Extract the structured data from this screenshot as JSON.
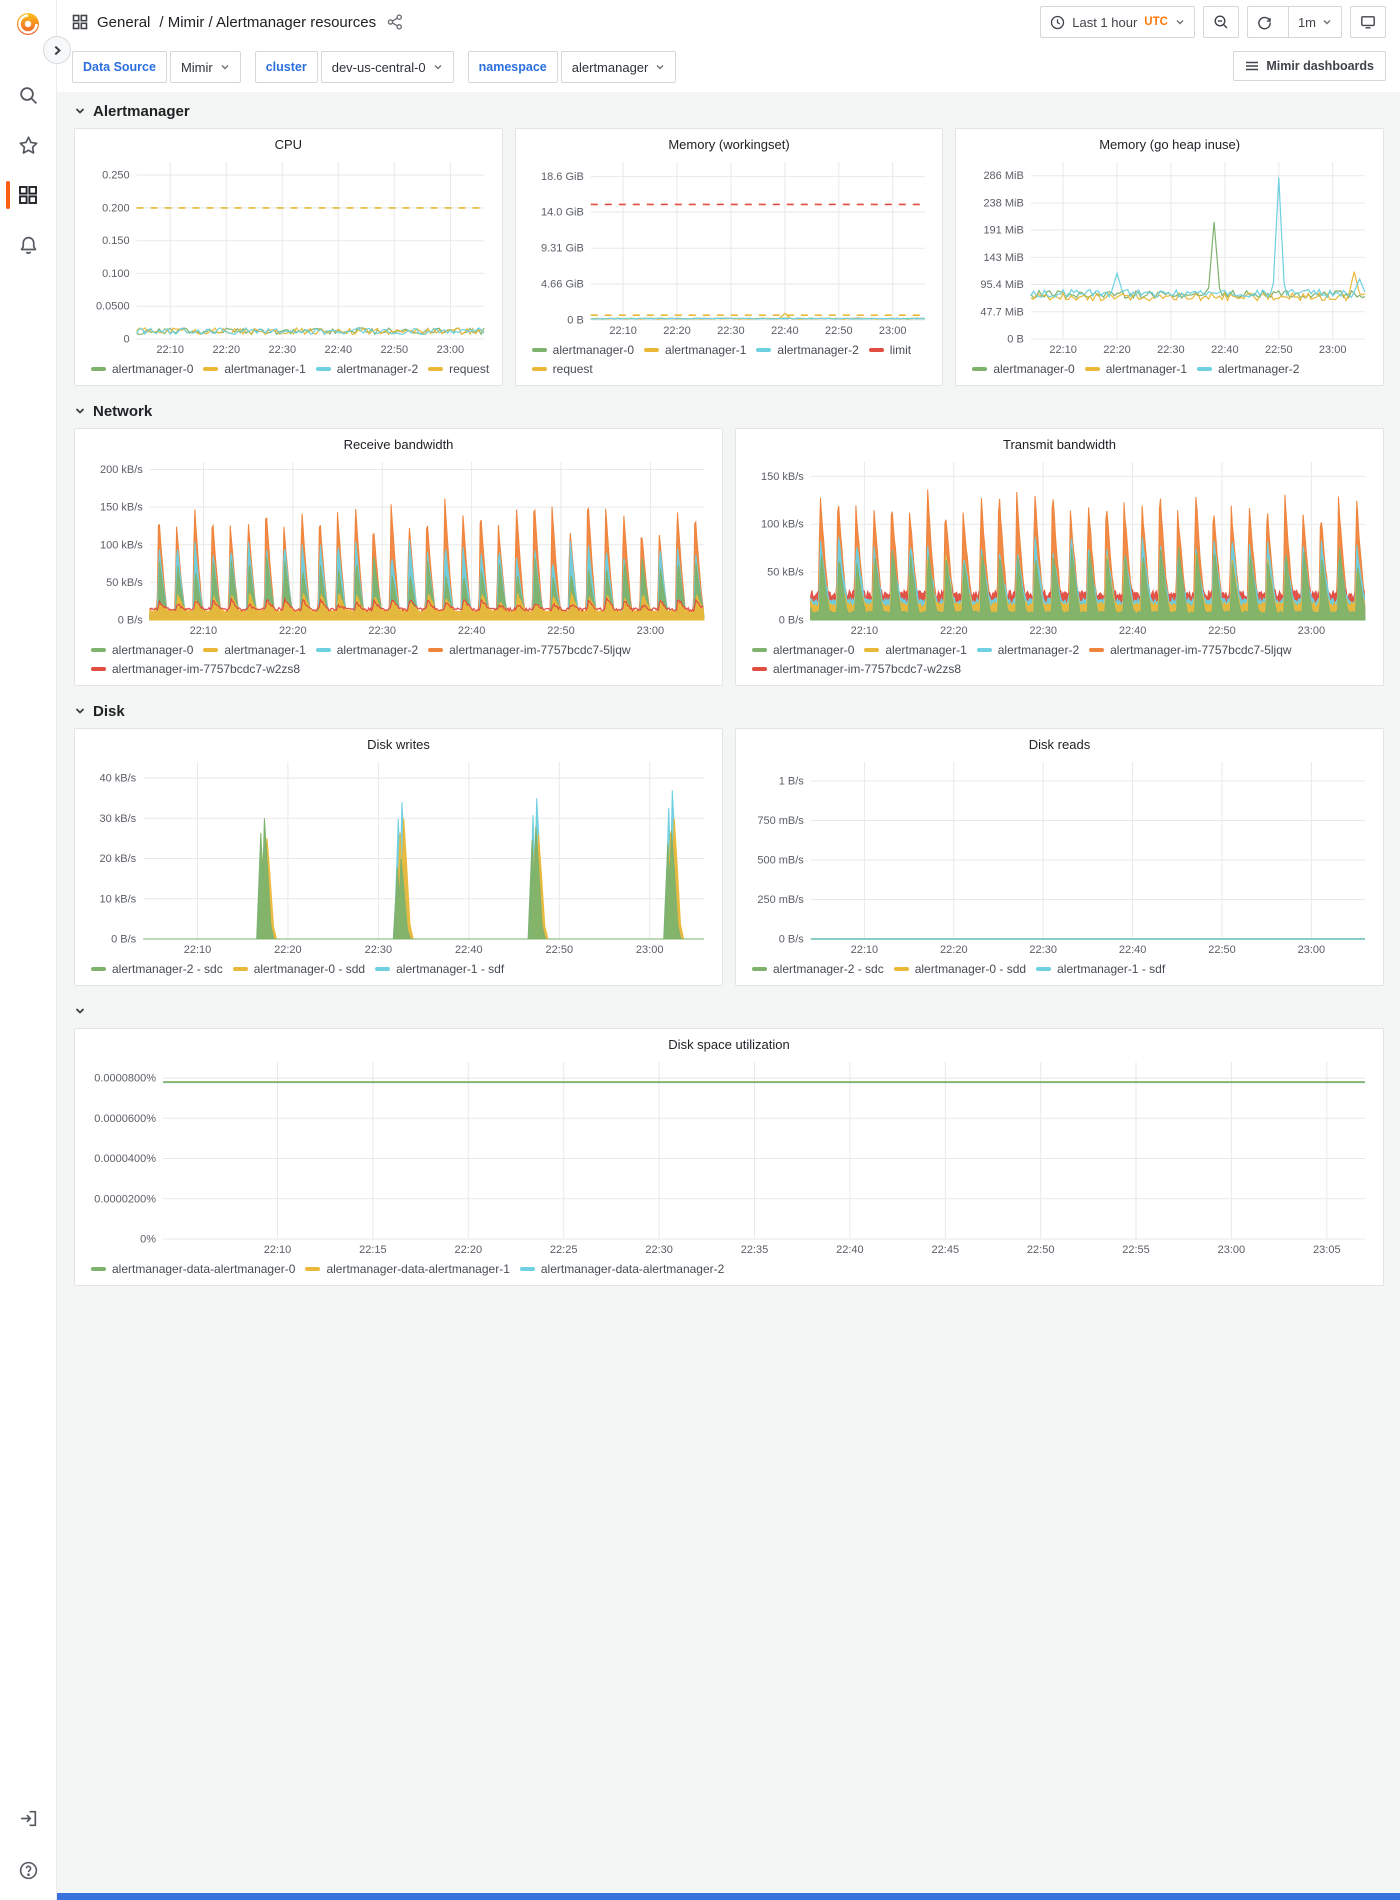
{
  "header": {
    "breadcrumb_section": "General",
    "breadcrumb_path": "/ Mimir / Alertmanager resources",
    "time_range": "Last 1 hour",
    "timezone": "UTC",
    "refresh_interval": "1m"
  },
  "submenu": {
    "variables": [
      {
        "label": "Data Source",
        "value": "Mimir"
      },
      {
        "label": "cluster",
        "value": "dev-us-central-0"
      },
      {
        "label": "namespace",
        "value": "alertmanager"
      }
    ],
    "dashboards_button": "Mimir dashboards"
  },
  "sidebar": {
    "icons": [
      "grafana-logo",
      "search",
      "star",
      "dashboards",
      "alerting"
    ],
    "bottom_icons": [
      "sign-in",
      "help"
    ]
  },
  "colors": {
    "green": "#7EB26D",
    "yellow": "#EAB839",
    "cyan": "#6ED0E0",
    "orange": "#EF843C",
    "red": "#E24D42",
    "accent_orange": "#FF780A",
    "link_blue": "#2B6FDF",
    "bottom_bar_blue": "#3871DC"
  },
  "sections": [
    {
      "title": "Alertmanager",
      "panels": [
        "cpu",
        "mem_ws",
        "mem_heap"
      ]
    },
    {
      "title": "Network",
      "panels": [
        "rx",
        "tx"
      ]
    },
    {
      "title": "Disk",
      "panels": [
        "dw",
        "dr"
      ]
    },
    {
      "title": "",
      "panels": [
        "dsu"
      ]
    }
  ],
  "chart_data": [
    {
      "id": "cpu",
      "type": "line",
      "title": "CPU",
      "x_max": 62,
      "x_ticks": [
        [
          6,
          "22:10"
        ],
        [
          16,
          "22:20"
        ],
        [
          26,
          "22:30"
        ],
        [
          36,
          "22:40"
        ],
        [
          46,
          "22:50"
        ],
        [
          56,
          "23:00"
        ]
      ],
      "y_max": 0.27,
      "y_ticks": [
        [
          0.25,
          "0.250"
        ],
        [
          0.2,
          "0.200"
        ],
        [
          0.15,
          "0.150"
        ],
        [
          0.1,
          "0.100"
        ],
        [
          0.05,
          "0.0500"
        ],
        [
          0,
          "0"
        ]
      ],
      "series": [
        {
          "name": "alertmanager-0",
          "color": "#7EB26D",
          "mode": "noisy",
          "base": 0.012,
          "amp": 0.005,
          "seed": 11
        },
        {
          "name": "alertmanager-1",
          "color": "#EAB839",
          "mode": "noisy",
          "base": 0.012,
          "amp": 0.005,
          "seed": 23
        },
        {
          "name": "alertmanager-2",
          "color": "#6ED0E0",
          "mode": "noisy",
          "base": 0.012,
          "amp": 0.005,
          "seed": 37
        },
        {
          "name": "request",
          "color": "#EAB839",
          "mode": "dashed",
          "value": 0.2
        }
      ]
    },
    {
      "id": "mem_ws",
      "type": "line",
      "title": "Memory (workingset)",
      "x_max": 62,
      "x_ticks": [
        [
          6,
          "22:10"
        ],
        [
          16,
          "22:20"
        ],
        [
          26,
          "22:30"
        ],
        [
          36,
          "22:40"
        ],
        [
          46,
          "22:50"
        ],
        [
          56,
          "23:00"
        ]
      ],
      "y_max": 20.5,
      "y_ticks": [
        [
          18.6,
          "18.6 GiB"
        ],
        [
          14.0,
          "14.0 GiB"
        ],
        [
          9.31,
          "9.31 GiB"
        ],
        [
          4.66,
          "4.66 GiB"
        ],
        [
          0,
          "0 B"
        ]
      ],
      "series": [
        {
          "name": "alertmanager-0",
          "color": "#7EB26D",
          "mode": "noisy",
          "base": 0.2,
          "amp": 0.05,
          "seed": 51
        },
        {
          "name": "alertmanager-1",
          "color": "#EAB839",
          "mode": "noisy",
          "base": 0.17,
          "amp": 0.05,
          "seed": 52,
          "events": [
            [
              36,
              0.85
            ]
          ]
        },
        {
          "name": "alertmanager-2",
          "color": "#6ED0E0",
          "mode": "noisy",
          "base": 0.18,
          "amp": 0.05,
          "seed": 53
        },
        {
          "name": "limit",
          "color": "#E24D42",
          "mode": "dashed",
          "value": 15.0
        },
        {
          "name": "request",
          "color": "#EAB839",
          "mode": "dashed",
          "value": 0.62
        }
      ]
    },
    {
      "id": "mem_heap",
      "type": "line",
      "title": "Memory (go heap inuse)",
      "x_max": 62,
      "x_ticks": [
        [
          6,
          "22:10"
        ],
        [
          16,
          "22:20"
        ],
        [
          26,
          "22:30"
        ],
        [
          36,
          "22:40"
        ],
        [
          46,
          "22:50"
        ],
        [
          56,
          "23:00"
        ]
      ],
      "y_max": 310,
      "y_ticks": [
        [
          286,
          "286 MiB"
        ],
        [
          238,
          "238 MiB"
        ],
        [
          191,
          "191 MiB"
        ],
        [
          143,
          "143 MiB"
        ],
        [
          95.4,
          "95.4 MiB"
        ],
        [
          47.7,
          "47.7 MiB"
        ],
        [
          0,
          "0 B"
        ]
      ],
      "series": [
        {
          "name": "alertmanager-0",
          "color": "#7EB26D",
          "mode": "noisy",
          "base": 78,
          "amp": 7,
          "seed": 41,
          "events": [
            [
              34,
              205
            ]
          ]
        },
        {
          "name": "alertmanager-1",
          "color": "#EAB839",
          "mode": "noisy",
          "base": 74,
          "amp": 7,
          "seed": 42,
          "events": [
            [
              60,
              118
            ]
          ]
        },
        {
          "name": "alertmanager-2",
          "color": "#6ED0E0",
          "mode": "noisy",
          "base": 80,
          "amp": 7,
          "seed": 43,
          "events": [
            [
              16,
              115
            ],
            [
              46,
              283
            ],
            [
              61,
              105
            ]
          ]
        }
      ]
    },
    {
      "id": "rx",
      "type": "area",
      "title": "Receive bandwidth",
      "x_max": 62,
      "x_ticks": [
        [
          6,
          "22:10"
        ],
        [
          16,
          "22:20"
        ],
        [
          26,
          "22:30"
        ],
        [
          36,
          "22:40"
        ],
        [
          46,
          "22:50"
        ],
        [
          56,
          "23:00"
        ]
      ],
      "y_max": 210,
      "y_ticks": [
        [
          200,
          "200 kB/s"
        ],
        [
          150,
          "150 kB/s"
        ],
        [
          100,
          "100 kB/s"
        ],
        [
          50,
          "50 kB/s"
        ],
        [
          0,
          "0 B/s"
        ]
      ],
      "series": [
        {
          "name": "alertmanager-0",
          "color": "#7EB26D",
          "mode": "spikes",
          "period": 2,
          "phase": 0.9,
          "base": 5,
          "peak": 72,
          "jitter": 12,
          "seed": 61,
          "z": 3
        },
        {
          "name": "alertmanager-1",
          "color": "#EAB839",
          "mode": "spikes",
          "period": 2,
          "phase": 0.95,
          "base": 12,
          "peak": 30,
          "jitter": 8,
          "seed": 62,
          "z": 4
        },
        {
          "name": "alertmanager-2",
          "color": "#6ED0E0",
          "mode": "spikes",
          "period": 2,
          "phase": 0.85,
          "base": 8,
          "peak": 95,
          "jitter": 14,
          "seed": 63,
          "z": 2
        },
        {
          "name": "alertmanager-im-7757bcdc7-5ljqw",
          "color": "#EF843C",
          "mode": "spikes",
          "period": 2,
          "phase": 0.8,
          "base": 10,
          "peak": 142,
          "jitter": 26,
          "seed": 64,
          "z": 1
        },
        {
          "name": "alertmanager-im-7757bcdc7-w2zs8",
          "color": "#E24D42",
          "mode": "spikes",
          "period": 2,
          "phase": 0.9,
          "base": 14,
          "peak": 24,
          "jitter": 5,
          "seed": 65,
          "z": 5,
          "fill": false
        }
      ]
    },
    {
      "id": "tx",
      "type": "area",
      "title": "Transmit bandwidth",
      "x_max": 62,
      "x_ticks": [
        [
          6,
          "22:10"
        ],
        [
          16,
          "22:20"
        ],
        [
          26,
          "22:30"
        ],
        [
          36,
          "22:40"
        ],
        [
          46,
          "22:50"
        ],
        [
          56,
          "23:00"
        ]
      ],
      "y_max": 165,
      "y_ticks": [
        [
          150,
          "150 kB/s"
        ],
        [
          100,
          "100 kB/s"
        ],
        [
          50,
          "50 kB/s"
        ],
        [
          0,
          "0 B/s"
        ]
      ],
      "series": [
        {
          "name": "alertmanager-0",
          "color": "#7EB26D",
          "mode": "spikes",
          "period": 2,
          "phase": 0.95,
          "base": 8,
          "peak": 70,
          "jitter": 10,
          "seed": 71,
          "z": 5
        },
        {
          "name": "alertmanager-1",
          "color": "#EAB839",
          "mode": "spikes",
          "period": 2,
          "phase": 0.9,
          "base": 16,
          "peak": 60,
          "jitter": 9,
          "seed": 72,
          "z": 4
        },
        {
          "name": "alertmanager-2",
          "color": "#6ED0E0",
          "mode": "spikes",
          "period": 2,
          "phase": 0.9,
          "base": 20,
          "peak": 80,
          "jitter": 10,
          "seed": 73,
          "z": 3
        },
        {
          "name": "alertmanager-im-7757bcdc7-5ljqw",
          "color": "#EF843C",
          "mode": "spikes",
          "period": 2,
          "phase": 0.85,
          "base": 22,
          "peak": 128,
          "jitter": 14,
          "seed": 74,
          "z": 1
        },
        {
          "name": "alertmanager-im-7757bcdc7-w2zs8",
          "color": "#E24D42",
          "mode": "spikes",
          "period": 2,
          "phase": 0.9,
          "base": 27,
          "peak": 42,
          "jitter": 6,
          "seed": 75,
          "z": 2
        }
      ]
    },
    {
      "id": "dw",
      "type": "area",
      "title": "Disk writes",
      "x_max": 62,
      "x_ticks": [
        [
          6,
          "22:10"
        ],
        [
          16,
          "22:20"
        ],
        [
          26,
          "22:30"
        ],
        [
          36,
          "22:40"
        ],
        [
          46,
          "22:50"
        ],
        [
          56,
          "23:00"
        ]
      ],
      "y_max": 44,
      "y_ticks": [
        [
          40,
          "40 kB/s"
        ],
        [
          30,
          "30 kB/s"
        ],
        [
          20,
          "20 kB/s"
        ],
        [
          10,
          "10 kB/s"
        ],
        [
          0,
          "0 B/s"
        ]
      ],
      "series": [
        {
          "name": "alertmanager-2 - sdc",
          "color": "#7EB26D",
          "mode": "bursts",
          "events": [
            [
              13.4,
              30
            ],
            [
              28.5,
              20
            ],
            [
              43.4,
              28
            ],
            [
              58.4,
              27
            ]
          ],
          "z": 3
        },
        {
          "name": "alertmanager-0 - sdd",
          "color": "#EAB839",
          "mode": "bursts",
          "events": [
            [
              13.7,
              25
            ],
            [
              28.8,
              30
            ],
            [
              43.7,
              26
            ],
            [
              58.7,
              30
            ]
          ],
          "z": 2
        },
        {
          "name": "alertmanager-1 - sdf",
          "color": "#6ED0E0",
          "mode": "bursts",
          "events": [
            [
              13.5,
              23
            ],
            [
              28.6,
              34
            ],
            [
              43.5,
              35
            ],
            [
              58.5,
              37
            ]
          ],
          "z": 1
        }
      ]
    },
    {
      "id": "dr",
      "type": "line",
      "title": "Disk reads",
      "x_max": 62,
      "x_ticks": [
        [
          6,
          "22:10"
        ],
        [
          16,
          "22:20"
        ],
        [
          26,
          "22:30"
        ],
        [
          36,
          "22:40"
        ],
        [
          46,
          "22:50"
        ],
        [
          56,
          "23:00"
        ]
      ],
      "y_max": 1.12,
      "y_ticks": [
        [
          1,
          "1 B/s"
        ],
        [
          0.75,
          "750 mB/s"
        ],
        [
          0.5,
          "500 mB/s"
        ],
        [
          0.25,
          "250 mB/s"
        ],
        [
          0,
          "0 B/s"
        ]
      ],
      "series": [
        {
          "name": "alertmanager-2 - sdc",
          "color": "#7EB26D",
          "mode": "flat",
          "value": 0
        },
        {
          "name": "alertmanager-0 - sdd",
          "color": "#EAB839",
          "mode": "flat",
          "value": 0
        },
        {
          "name": "alertmanager-1 - sdf",
          "color": "#6ED0E0",
          "mode": "flat",
          "value": 0
        }
      ]
    },
    {
      "id": "dsu",
      "type": "line",
      "title": "Disk space utilization",
      "x_max": 63,
      "x_ticks": [
        [
          6,
          "22:10"
        ],
        [
          11,
          "22:15"
        ],
        [
          16,
          "22:20"
        ],
        [
          21,
          "22:25"
        ],
        [
          26,
          "22:30"
        ],
        [
          31,
          "22:35"
        ],
        [
          36,
          "22:40"
        ],
        [
          41,
          "22:45"
        ],
        [
          46,
          "22:50"
        ],
        [
          51,
          "22:55"
        ],
        [
          56,
          "23:00"
        ],
        [
          61,
          "23:05"
        ]
      ],
      "y_max": 8.8e-05,
      "y_ticks": [
        [
          8e-05,
          "0.0000800%"
        ],
        [
          6e-05,
          "0.0000600%"
        ],
        [
          4e-05,
          "0.0000400%"
        ],
        [
          2e-05,
          "0.0000200%"
        ],
        [
          0,
          "0%"
        ]
      ],
      "series": [
        {
          "name": "alertmanager-data-alertmanager-0",
          "color": "#7EB26D",
          "mode": "flat",
          "value": 7.8e-05,
          "z": 3
        },
        {
          "name": "alertmanager-data-alertmanager-1",
          "color": "#EAB839",
          "mode": "flat",
          "value": 7.8e-05,
          "z": 1
        },
        {
          "name": "alertmanager-data-alertmanager-2",
          "color": "#6ED0E0",
          "mode": "flat",
          "value": 7.79e-05,
          "z": 2
        }
      ]
    }
  ]
}
